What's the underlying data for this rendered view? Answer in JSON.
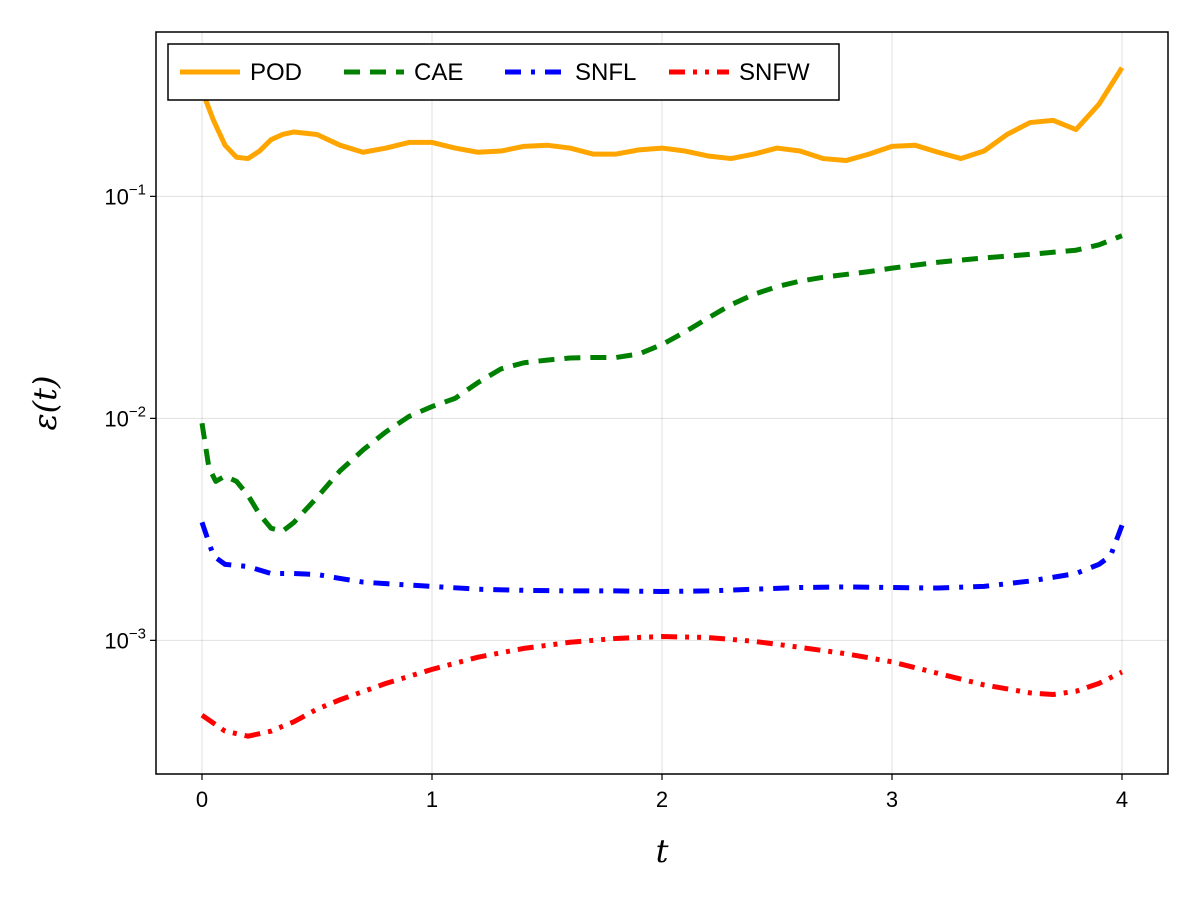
{
  "chart_data": {
    "type": "line",
    "title": "",
    "xlabel": "t",
    "ylabel": "ε(t)",
    "xlim": [
      -0.2,
      4.2
    ],
    "ylim": [
      0.00025,
      0.55
    ],
    "yscale": "log",
    "grid": true,
    "legend_position": "top-left",
    "x_ticks": [
      0,
      1,
      2,
      3,
      4
    ],
    "x_tick_labels": [
      "0",
      "1",
      "2",
      "3",
      "4"
    ],
    "y_ticks": [
      0.001,
      0.01,
      0.1
    ],
    "y_tick_labels": [
      {
        "base": "10",
        "exp": "−3"
      },
      {
        "base": "10",
        "exp": "−2"
      },
      {
        "base": "10",
        "exp": "−1"
      }
    ],
    "series": [
      {
        "name": "POD",
        "color": "#FFA500",
        "dash": "solid",
        "x": [
          0,
          0.05,
          0.1,
          0.15,
          0.2,
          0.25,
          0.3,
          0.35,
          0.4,
          0.5,
          0.6,
          0.7,
          0.8,
          0.9,
          1.0,
          1.1,
          1.2,
          1.3,
          1.4,
          1.5,
          1.6,
          1.7,
          1.8,
          1.9,
          2.0,
          2.1,
          2.2,
          2.3,
          2.4,
          2.5,
          2.6,
          2.7,
          2.8,
          2.9,
          3.0,
          3.1,
          3.2,
          3.3,
          3.4,
          3.5,
          3.6,
          3.7,
          3.8,
          3.9,
          4.0
        ],
        "y": [
          0.3,
          0.22,
          0.17,
          0.15,
          0.148,
          0.16,
          0.18,
          0.19,
          0.195,
          0.19,
          0.17,
          0.158,
          0.165,
          0.175,
          0.175,
          0.165,
          0.158,
          0.16,
          0.168,
          0.17,
          0.165,
          0.155,
          0.155,
          0.162,
          0.165,
          0.16,
          0.152,
          0.148,
          0.155,
          0.165,
          0.16,
          0.148,
          0.145,
          0.155,
          0.168,
          0.17,
          0.158,
          0.148,
          0.16,
          0.19,
          0.215,
          0.22,
          0.2,
          0.26,
          0.38
        ]
      },
      {
        "name": "CAE",
        "color": "#008000",
        "dash": "dash",
        "x": [
          0,
          0.03,
          0.06,
          0.1,
          0.15,
          0.2,
          0.25,
          0.3,
          0.35,
          0.4,
          0.5,
          0.6,
          0.7,
          0.8,
          0.9,
          1.0,
          1.1,
          1.2,
          1.3,
          1.4,
          1.5,
          1.6,
          1.7,
          1.8,
          1.9,
          2.0,
          2.1,
          2.2,
          2.3,
          2.4,
          2.5,
          2.6,
          2.7,
          2.8,
          2.9,
          3.0,
          3.2,
          3.4,
          3.6,
          3.8,
          3.9,
          4.0
        ],
        "y": [
          0.0095,
          0.006,
          0.0052,
          0.0055,
          0.0052,
          0.0045,
          0.0037,
          0.0032,
          0.0031,
          0.0034,
          0.0044,
          0.0058,
          0.0072,
          0.0087,
          0.0102,
          0.0113,
          0.0123,
          0.0145,
          0.0167,
          0.0178,
          0.0183,
          0.0187,
          0.0188,
          0.0188,
          0.0195,
          0.0215,
          0.0245,
          0.0283,
          0.0325,
          0.0362,
          0.0392,
          0.0415,
          0.0432,
          0.0445,
          0.0458,
          0.0475,
          0.0505,
          0.0528,
          0.0548,
          0.0572,
          0.0605,
          0.0665
        ]
      },
      {
        "name": "SNFL",
        "color": "#0000FF",
        "dash": "dashdot",
        "x": [
          0,
          0.05,
          0.1,
          0.2,
          0.3,
          0.4,
          0.5,
          0.6,
          0.7,
          0.8,
          1.0,
          1.2,
          1.4,
          1.6,
          1.8,
          2.0,
          2.2,
          2.4,
          2.6,
          2.8,
          3.0,
          3.2,
          3.4,
          3.6,
          3.8,
          3.9,
          3.95,
          4.0
        ],
        "y": [
          0.0034,
          0.0024,
          0.0022,
          0.00215,
          0.002,
          0.002,
          0.00198,
          0.0019,
          0.00183,
          0.0018,
          0.00175,
          0.0017,
          0.00168,
          0.00167,
          0.00167,
          0.00166,
          0.00167,
          0.0017,
          0.00173,
          0.00174,
          0.00173,
          0.00172,
          0.00175,
          0.00185,
          0.002,
          0.0022,
          0.0024,
          0.0033
        ]
      },
      {
        "name": "SNFW",
        "color": "#FF0000",
        "dash": "dashdotdot",
        "x": [
          0,
          0.1,
          0.2,
          0.3,
          0.4,
          0.5,
          0.6,
          0.8,
          1.0,
          1.2,
          1.4,
          1.6,
          1.8,
          2.0,
          2.2,
          2.4,
          2.6,
          2.8,
          3.0,
          3.2,
          3.4,
          3.6,
          3.7,
          3.8,
          3.9,
          4.0
        ],
        "y": [
          0.00046,
          0.00039,
          0.00037,
          0.00039,
          0.00043,
          0.00049,
          0.00054,
          0.00064,
          0.00074,
          0.00084,
          0.00092,
          0.00098,
          0.00102,
          0.00104,
          0.00103,
          0.00099,
          0.00093,
          0.00087,
          0.0008,
          0.00071,
          0.00063,
          0.00058,
          0.00057,
          0.00059,
          0.00064,
          0.00072
        ]
      }
    ]
  }
}
